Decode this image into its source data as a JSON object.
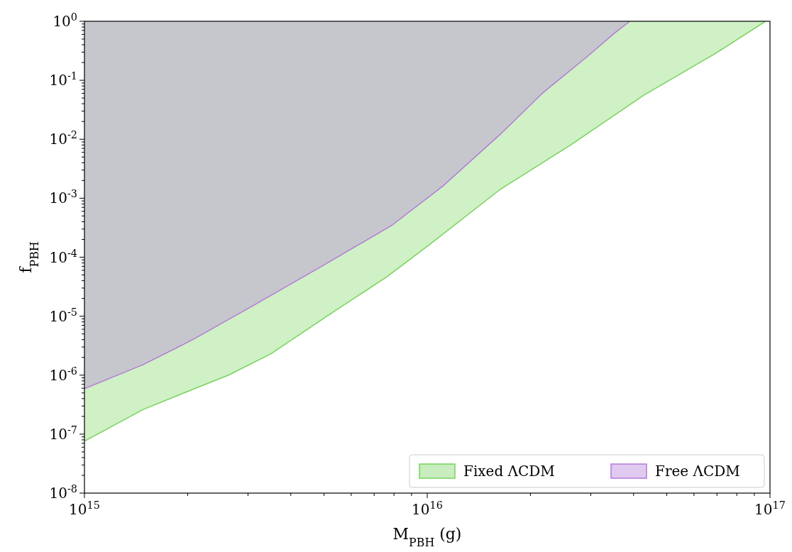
{
  "chart_data": {
    "type": "line",
    "xlabel": "M$_{PBH}$ (g)",
    "ylabel": "f$_{PBH}$",
    "log": "xy",
    "legend": "bottom right",
    "grid": false,
    "xlim": [
      1000000000000000.0,
      1e+17
    ],
    "xticks": [
      {
        "value": 1000000000000000.0,
        "label": "10$^{15}$"
      },
      {
        "value": 1e+16,
        "label": "10$^{16}$"
      },
      {
        "value": 1e+17,
        "label": "10$^{17}$"
      }
    ],
    "ylim": [
      1e-08,
      1
    ],
    "yticks": [
      {
        "value": 1e-08,
        "label": "10$^{-8}$"
      },
      {
        "value": 1e-07,
        "label": "10$^{-7}$"
      },
      {
        "value": 1e-06,
        "label": "10$^{-6}$"
      },
      {
        "value": 1e-05,
        "label": "10$^{-5}$"
      },
      {
        "value": 0.0001,
        "label": "10$^{-4}$"
      },
      {
        "value": 0.001,
        "label": "10$^{-3}$"
      },
      {
        "value": 0.01,
        "label": "10$^{-2}$"
      },
      {
        "value": 0.1,
        "label": "10$^{-1}$"
      },
      {
        "value": 1,
        "label": "10$^{0}$"
      }
    ],
    "series": [
      {
        "name": "Fixed ΛCDM",
        "color": "#77d35c",
        "x": [
          1000000000000000.0,
          1480000000000000.0,
          1970000000000000.0,
          2630000000000000.0,
          3500000000000000.0,
          5100000000000000.0,
          7600000000000000.0,
          1.01e+16,
          1.63e+16,
          2.63e+16,
          4.27e+16,
          6.9e+16,
          9.7e+16
        ],
        "values": [
          7.6e-08,
          2.6e-07,
          5.1e-07,
          1e-06,
          2.3e-06,
          1e-05,
          4.6e-05,
          0.00016,
          0.0014,
          0.0081,
          0.055,
          0.28,
          1
        ]
      },
      {
        "name": "Free ΛCDM",
        "color": "#b57ad9",
        "x": [
          1000000000000000.0,
          1480000000000000.0,
          2070000000000000.0,
          3000000000000000.0,
          4900000000000000.0,
          7900000000000000.0,
          1.11e+16,
          1.63e+16,
          2.18e+16,
          2.9e+16,
          3.52e+16,
          3.9e+16
        ],
        "values": [
          5.9e-07,
          1.5e-06,
          4e-06,
          1.35e-05,
          6.9e-05,
          0.00035,
          0.0016,
          0.012,
          0.062,
          0.24,
          0.63,
          1
        ]
      }
    ]
  }
}
